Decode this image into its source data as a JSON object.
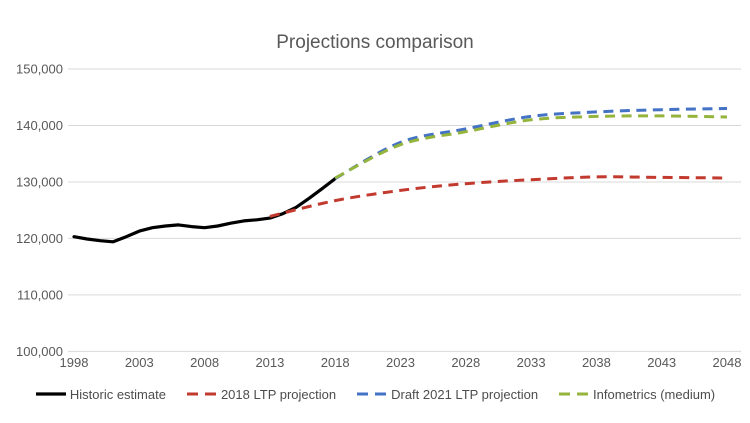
{
  "chart_data": {
    "type": "line",
    "title": "Projections comparison",
    "x_axis": {
      "min": 1998,
      "max": 2048,
      "step": 5,
      "tick_labels": [
        "1998",
        "2003",
        "2008",
        "2013",
        "2018",
        "2023",
        "2028",
        "2033",
        "2038",
        "2043",
        "2048"
      ]
    },
    "y_axis": {
      "min": 100000,
      "max": 150000,
      "step": 10000,
      "tick_labels": [
        "100,000",
        "110,000",
        "120,000",
        "130,000",
        "140,000",
        "150,000"
      ]
    },
    "grid": "horizontal-only",
    "legend_position": "bottom",
    "series": [
      {
        "name": "Historic estimate",
        "color": "#000000",
        "style": "solid",
        "x_start": 1998,
        "x_step": 1,
        "values": [
          120300,
          119900,
          119600,
          119400,
          120300,
          121300,
          121900,
          122200,
          122400,
          122100,
          121900,
          122200,
          122700,
          123100,
          123300,
          123600,
          124400,
          125500,
          127100,
          128800,
          130600
        ]
      },
      {
        "name": "2018 LTP projection",
        "color": "#c2392e",
        "style": "dashed",
        "x_start": 2013,
        "x_step": 5,
        "values": [
          123900,
          126700,
          128500,
          129700,
          130400,
          130900,
          130800,
          130700
        ]
      },
      {
        "name": "Draft 2021 LTP projection",
        "color": "#4472c4",
        "style": "dashed",
        "x_start": 2018,
        "x_step": 5,
        "values": [
          130600,
          137000,
          139400,
          141600,
          142400,
          142800,
          143000
        ]
      },
      {
        "name": "Infometrics (medium)",
        "color": "#94b43c",
        "style": "dashed",
        "x_start": 2018,
        "x_step": 5,
        "values": [
          130700,
          136600,
          138900,
          141000,
          141600,
          141700,
          141500
        ]
      }
    ],
    "colors": {
      "title_text": "#595959",
      "axis_text": "#595959",
      "legend_text": "#4d4d4d",
      "gridline": "#d9d9d9",
      "background": "#ffffff"
    }
  }
}
